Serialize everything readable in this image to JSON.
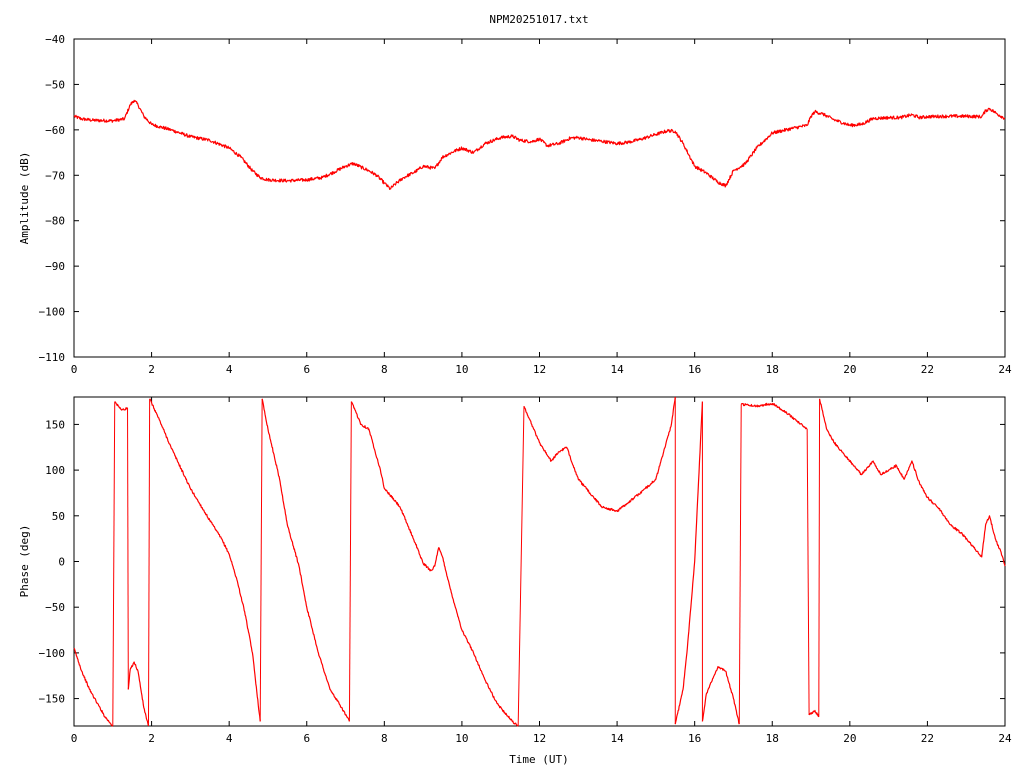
{
  "title": "NPM20251017.txt",
  "colors": {
    "trace": "#ff0000",
    "axes": "#000000",
    "background": "#ffffff"
  },
  "chart_data": [
    {
      "type": "line",
      "title": "NPM20251017.txt",
      "xlabel": "",
      "ylabel": "Amplitude (dB)",
      "xlim": [
        0,
        24
      ],
      "ylim": [
        -110,
        -40
      ],
      "xticks": [
        0,
        2,
        4,
        6,
        8,
        10,
        12,
        14,
        16,
        18,
        20,
        22,
        24
      ],
      "yticks": [
        -110,
        -100,
        -90,
        -80,
        -70,
        -60,
        -50,
        -40
      ],
      "grid": false,
      "series": [
        {
          "x": [
            0,
            0.2,
            0.5,
            1.0,
            1.3,
            1.45,
            1.55,
            1.65,
            1.8,
            2.0,
            2.2,
            2.5,
            3.0,
            3.5,
            4.0,
            4.3,
            4.6,
            4.8,
            5.0,
            5.5,
            6.0,
            6.4,
            6.7,
            7.0,
            7.2,
            7.4,
            7.6,
            7.8,
            8.0,
            8.15,
            8.3,
            8.5,
            8.8,
            9.0,
            9.3,
            9.5,
            9.8,
            10.0,
            10.3,
            10.6,
            11.0,
            11.3,
            11.5,
            11.8,
            12.0,
            12.2,
            12.5,
            12.8,
            13.0,
            13.3,
            13.6,
            14.0,
            14.3,
            14.6,
            15.0,
            15.3,
            15.5,
            15.7,
            16.0,
            16.3,
            16.6,
            16.8,
            17.0,
            17.3,
            17.6,
            18.0,
            18.5,
            18.9,
            19.0,
            19.1,
            19.3,
            19.6,
            20.0,
            20.3,
            20.6,
            21.0,
            21.3,
            21.6,
            21.8,
            22.0,
            22.5,
            23.0,
            23.4,
            23.5,
            23.6,
            23.8,
            24.0
          ],
          "values": [
            -57,
            -57.6,
            -57.9,
            -58,
            -57.6,
            -54.5,
            -53.5,
            -54.5,
            -57,
            -58.8,
            -59.3,
            -60,
            -61.5,
            -62.3,
            -64,
            -66,
            -69,
            -70.5,
            -71,
            -71.2,
            -71,
            -70.5,
            -69.3,
            -68,
            -67.4,
            -68.2,
            -69,
            -70,
            -71.7,
            -73,
            -71.8,
            -70.5,
            -69.2,
            -68,
            -68.5,
            -66,
            -64.7,
            -64,
            -65,
            -63,
            -61.7,
            -61.4,
            -62.3,
            -62.6,
            -62,
            -63.5,
            -63,
            -61.8,
            -61.7,
            -62.2,
            -62.5,
            -63,
            -62.7,
            -62.1,
            -61,
            -60.2,
            -60.3,
            -63,
            -68,
            -69.5,
            -71.5,
            -72.3,
            -69,
            -67.5,
            -64,
            -60.7,
            -59.7,
            -59,
            -57,
            -56,
            -56.5,
            -57.8,
            -59,
            -58.8,
            -57.5,
            -57.3,
            -57.3,
            -56.7,
            -57.3,
            -57.1,
            -57,
            -57,
            -57.1,
            -55.8,
            -55.3,
            -56.5,
            -57.5
          ]
        }
      ]
    },
    {
      "type": "line",
      "title": "",
      "xlabel": "Time (UT)",
      "ylabel": "Phase (deg)",
      "xlim": [
        0,
        24
      ],
      "ylim": [
        -180,
        180
      ],
      "xticks": [
        0,
        2,
        4,
        6,
        8,
        10,
        12,
        14,
        16,
        18,
        20,
        22,
        24
      ],
      "yticks": [
        -150,
        -100,
        -50,
        0,
        50,
        100,
        150
      ],
      "grid": false,
      "series": [
        {
          "x": [
            0,
            0.2,
            0.4,
            0.6,
            0.8,
            1.0
          ],
          "values": [
            -95,
            -120,
            -140,
            -155,
            -170,
            -180
          ]
        },
        {
          "x": [
            1.05,
            1.1,
            1.2,
            1.3,
            1.38
          ],
          "values": [
            175,
            172,
            167,
            166,
            168
          ]
        },
        {
          "x": [
            1.4,
            1.45,
            1.55,
            1.65,
            1.8,
            1.92
          ],
          "values": [
            -140,
            -118,
            -110,
            -120,
            -160,
            -180
          ]
        },
        {
          "x": [
            1.95,
            2.2,
            2.5,
            3.0,
            3.5,
            3.8,
            4.0,
            4.2,
            4.4,
            4.6,
            4.8
          ],
          "values": [
            178,
            155,
            125,
            80,
            45,
            25,
            8,
            -20,
            -55,
            -100,
            -175
          ]
        },
        {
          "x": [
            4.85,
            5.0,
            5.3,
            5.5,
            5.8,
            6.0,
            6.3,
            6.6,
            6.9,
            7.1
          ],
          "values": [
            178,
            145,
            90,
            40,
            -5,
            -50,
            -100,
            -140,
            -160,
            -175
          ]
        },
        {
          "x": [
            7.15,
            7.4,
            7.6,
            7.7,
            7.9,
            8.0,
            8.4,
            8.6,
            8.8,
            9.0,
            9.2,
            9.3,
            9.4,
            9.5,
            9.7,
            10.0,
            10.3,
            10.6,
            10.9,
            11.1,
            11.3,
            11.45
          ],
          "values": [
            175,
            150,
            145,
            130,
            100,
            80,
            60,
            40,
            20,
            -2,
            -10,
            -5,
            15,
            5,
            -30,
            -75,
            -100,
            -130,
            -155,
            -165,
            -175,
            -180
          ]
        },
        {
          "x": [
            11.6,
            11.8,
            12.0,
            12.3,
            12.5,
            12.7,
            13.0,
            13.3,
            13.6,
            14.0,
            14.3,
            14.6,
            15.0,
            15.2,
            15.4,
            15.5
          ],
          "values": [
            170,
            150,
            130,
            110,
            120,
            125,
            90,
            75,
            60,
            55,
            65,
            75,
            90,
            120,
            150,
            180
          ]
        },
        {
          "x": [
            15.5,
            15.7,
            15.8,
            16.0,
            16.2
          ],
          "values": [
            -178,
            -140,
            -100,
            0,
            175
          ]
        },
        {
          "x": [
            16.2,
            16.3,
            16.5,
            16.6,
            16.8,
            17.0,
            17.15
          ],
          "values": [
            -175,
            -145,
            -125,
            -115,
            -120,
            -150,
            -178
          ]
        },
        {
          "x": [
            17.2,
            17.4,
            17.6,
            18.0,
            18.3,
            18.6,
            18.9
          ],
          "values": [
            172,
            171,
            170,
            173,
            165,
            155,
            145
          ]
        },
        {
          "x": [
            18.95,
            19.1,
            19.2
          ],
          "values": [
            -168,
            -163,
            -170
          ]
        },
        {
          "x": [
            19.22,
            19.4,
            19.6,
            20.0,
            20.3,
            20.6,
            20.8,
            21.0,
            21.2,
            21.4,
            21.6,
            21.8,
            22.0,
            22.3,
            22.6,
            22.9,
            23.2,
            23.4,
            23.5,
            23.6,
            23.75,
            23.9,
            24.0
          ],
          "values": [
            178,
            145,
            130,
            110,
            95,
            110,
            95,
            100,
            105,
            90,
            110,
            85,
            70,
            58,
            40,
            30,
            15,
            5,
            40,
            50,
            25,
            10,
            -5
          ]
        }
      ]
    }
  ]
}
